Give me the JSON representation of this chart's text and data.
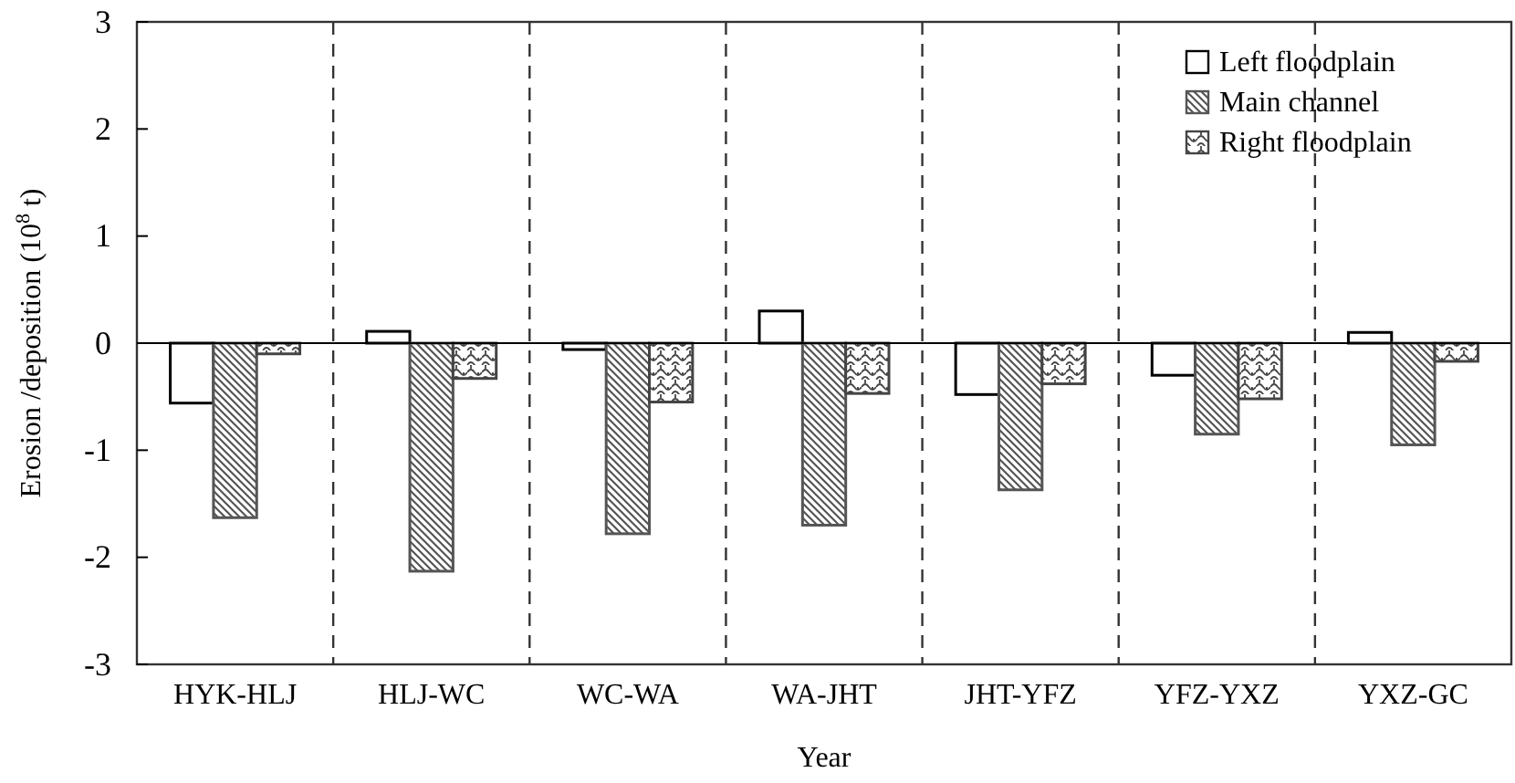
{
  "chart_data": {
    "type": "bar",
    "xlabel": "Year",
    "ylabel": "Erosion /deposition (10$^{8}$ t)",
    "categories": [
      "HYK-HLJ",
      "HLJ-WC",
      "WC-WA",
      "WA-JHT",
      "JHT-YFZ",
      "YFZ-YXZ",
      "YXZ-GC"
    ],
    "series": [
      {
        "name": "Left floodplain",
        "color": "#000000",
        "values": [
          -0.56,
          0.11,
          -0.06,
          0.3,
          -0.48,
          -0.3,
          0.1
        ]
      },
      {
        "name": "Main channel",
        "color": "#555555",
        "values": [
          -1.63,
          -2.13,
          -1.78,
          -1.7,
          -1.37,
          -0.85,
          -0.95
        ]
      },
      {
        "name": "Right floodplain",
        "color": "#444444",
        "values": [
          -0.1,
          -0.33,
          -0.55,
          -0.47,
          -0.38,
          -0.52,
          -0.17
        ]
      }
    ],
    "ylim": [
      -3,
      3
    ],
    "yticks": [
      -3,
      -2,
      -1,
      0,
      1,
      2,
      3
    ],
    "grid": "x",
    "legend": "top right"
  }
}
